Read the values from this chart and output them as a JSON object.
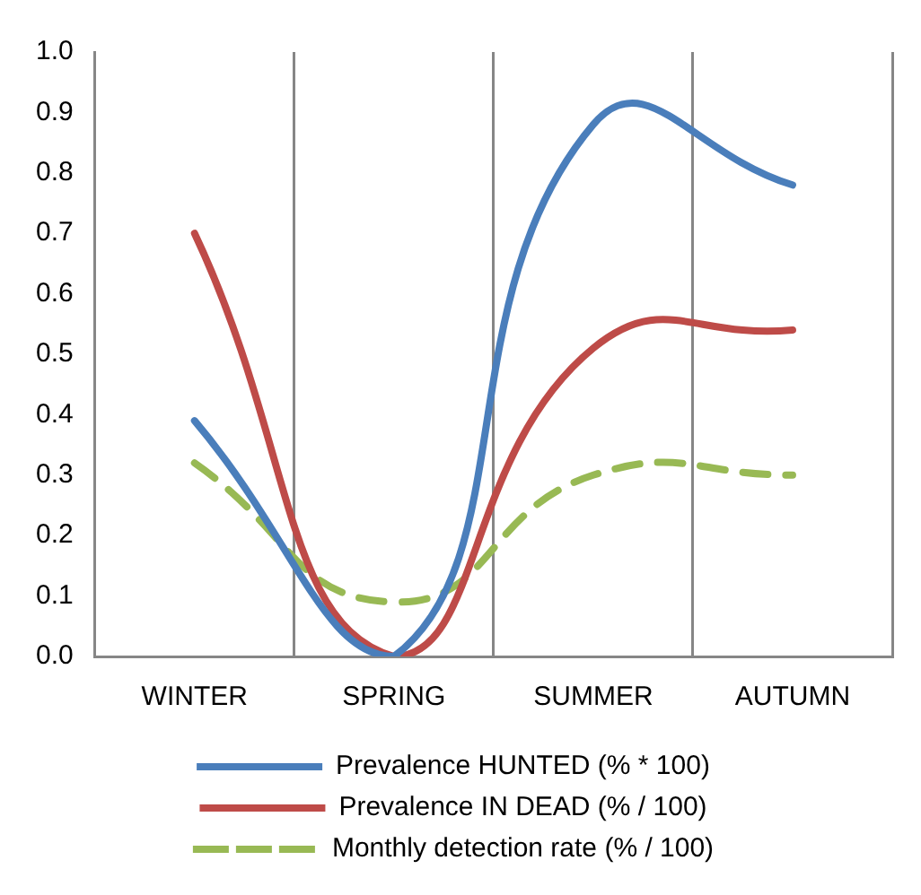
{
  "chart_data": {
    "type": "line",
    "categories": [
      "WINTER",
      "SPRING",
      "SUMMER",
      "AUTUMN"
    ],
    "series": [
      {
        "name": "Prevalence HUNTED (% * 100)",
        "color": "#4a7ebb",
        "values": [
          0.39,
          0.0,
          0.88,
          0.78
        ]
      },
      {
        "name": "Prevalence IN DEAD (% / 100)",
        "color": "#be4b48",
        "values": [
          0.7,
          0.0,
          0.51,
          0.54
        ]
      },
      {
        "name": "Monthly detection rate (% / 100)",
        "color": "#98b954",
        "values": [
          0.32,
          0.09,
          0.3,
          0.3
        ],
        "line_style": "dashed"
      }
    ],
    "ylim": [
      0,
      1
    ],
    "yticks": [
      {
        "value": 0,
        "label": "0.0"
      },
      0.1,
      0.2,
      0.3,
      0.4,
      0.5,
      0.6,
      0.7,
      0.8,
      0.9,
      {
        "value": 1,
        "label": "1.0"
      }
    ],
    "grid": "x",
    "legend": "bottom",
    "marker": "none",
    "line_style": "solid"
  }
}
